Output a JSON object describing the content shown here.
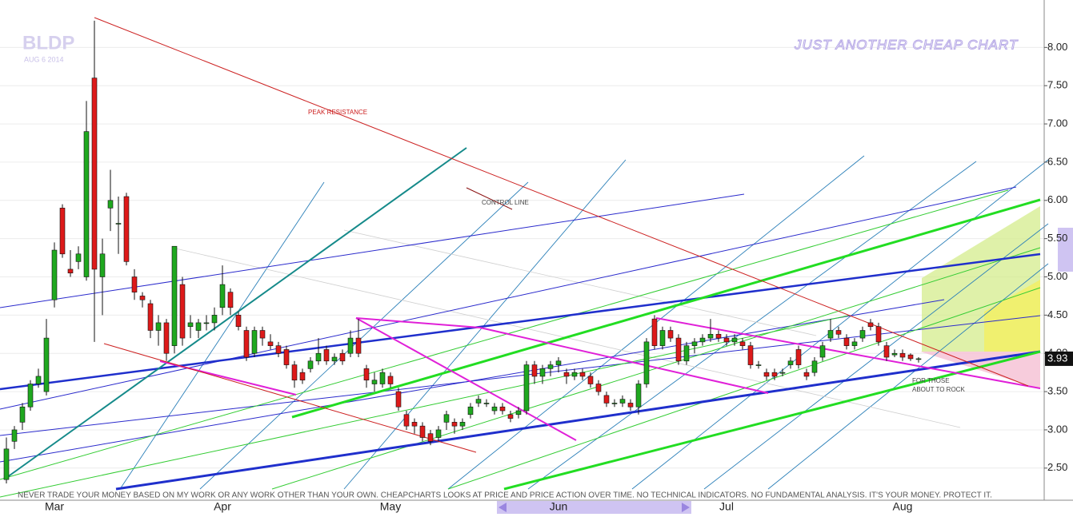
{
  "chart_data": {
    "type": "candlestick",
    "title": "JUST ANOTHER CHEAP CHART",
    "symbol": "BLDP",
    "date": "AUG 6 2014",
    "annotations": [
      "PEAK RESISTANCE",
      "CONTROL LINE",
      "FOR THOSE",
      "ABOUT TO ROCK"
    ],
    "disclaimer": "NEVER TRADE YOUR MONEY BASED ON MY WORK OR ANY WORK OTHER THAN YOUR OWN. CHEAPCHARTS LOOKS AT PRICE AND PRICE ACTION OVER TIME. NO TECHNICAL INDICATORS. NO FUNDAMENTAL ANALYSIS. IT'S YOUR MONEY. PROTECT IT.",
    "categories": [
      null,
      null,
      null,
      null,
      null,
      null,
      "Mar",
      null,
      null,
      null,
      null,
      null,
      null,
      null,
      null,
      null,
      null,
      null,
      null,
      null,
      null,
      null,
      null,
      null,
      null,
      null,
      null,
      "Apr",
      null,
      null,
      null,
      null,
      null,
      null,
      null,
      null,
      null,
      null,
      null,
      null,
      null,
      null,
      null,
      null,
      null,
      null,
      null,
      null,
      "May",
      null,
      null,
      null,
      null,
      null,
      null,
      null,
      null,
      null,
      null,
      null,
      null,
      null,
      null,
      null,
      null,
      null,
      null,
      null,
      null,
      "Jun",
      null,
      null,
      null,
      null,
      null,
      null,
      null,
      null,
      null,
      null,
      null,
      null,
      null,
      null,
      null,
      null,
      null,
      null,
      null,
      null,
      "Jul",
      null,
      null,
      null,
      null,
      null,
      null,
      null,
      null,
      null,
      null,
      null,
      null,
      null,
      null,
      null,
      null,
      null,
      null,
      null,
      null,
      null,
      "Aug",
      null,
      null
    ],
    "open": [
      2.35,
      2.85,
      3.1,
      3.3,
      3.6,
      3.5,
      4.7,
      5.9,
      5.1,
      5.2,
      5.0,
      7.6,
      5.0,
      5.9,
      5.7,
      6.05,
      5.0,
      4.75,
      4.65,
      4.3,
      4.4,
      4.1,
      4.9,
      4.35,
      4.3,
      4.4,
      4.4,
      4.6,
      4.8,
      4.5,
      4.3,
      4.0,
      4.3,
      4.15,
      4.1,
      4.05,
      3.85,
      3.75,
      3.8,
      3.9,
      4.05,
      3.9,
      4.0,
      4.0,
      4.2,
      3.8,
      3.6,
      3.6,
      3.7,
      3.5,
      3.2,
      3.1,
      3.05,
      2.95,
      2.9,
      3.1,
      3.1,
      3.05,
      3.2,
      3.35,
      3.35,
      3.25,
      3.3,
      3.2,
      3.2,
      3.25,
      3.85,
      3.7,
      3.8,
      3.85,
      3.75,
      3.7,
      3.75,
      3.7,
      3.6,
      3.45,
      3.35,
      3.35,
      3.35,
      3.3,
      3.6,
      4.45,
      4.1,
      4.3,
      4.2,
      3.9,
      4.1,
      4.15,
      4.2,
      4.25,
      4.2,
      4.15,
      4.15,
      4.1,
      3.85,
      3.75,
      3.75,
      3.75,
      3.85,
      4.05,
      3.75,
      3.75,
      3.95,
      4.2,
      4.3,
      4.2,
      4.1,
      4.2,
      4.4,
      4.35,
      4.1,
      3.98,
      4.0,
      3.98,
      3.93
    ],
    "high": [
      2.9,
      3.05,
      3.35,
      3.65,
      3.8,
      4.45,
      5.45,
      5.95,
      5.35,
      5.4,
      7.3,
      8.35,
      5.5,
      6.4,
      6.05,
      6.1,
      5.1,
      4.8,
      4.7,
      4.5,
      4.45,
      5.4,
      5.0,
      4.5,
      4.45,
      4.5,
      4.6,
      5.15,
      4.85,
      4.55,
      4.35,
      4.35,
      4.35,
      4.25,
      4.15,
      4.1,
      3.9,
      3.8,
      3.95,
      4.2,
      4.1,
      4.0,
      4.05,
      4.3,
      4.45,
      3.85,
      3.75,
      3.8,
      3.75,
      3.55,
      3.25,
      3.15,
      3.1,
      3.0,
      3.05,
      3.25,
      3.15,
      3.15,
      3.35,
      3.45,
      3.4,
      3.35,
      3.35,
      3.25,
      3.3,
      3.9,
      3.9,
      3.85,
      3.9,
      3.95,
      3.8,
      3.8,
      3.8,
      3.75,
      3.65,
      3.5,
      3.4,
      3.45,
      3.4,
      3.65,
      4.2,
      4.5,
      4.35,
      4.35,
      4.25,
      4.15,
      4.2,
      4.25,
      4.45,
      4.3,
      4.25,
      4.25,
      4.2,
      4.15,
      3.9,
      3.8,
      3.8,
      3.8,
      3.95,
      4.1,
      3.8,
      3.95,
      4.15,
      4.45,
      4.35,
      4.25,
      4.2,
      4.35,
      4.45,
      4.4,
      4.15,
      4.05,
      4.05,
      4.0,
      3.95
    ],
    "low": [
      2.3,
      2.75,
      3.0,
      3.25,
      3.55,
      3.45,
      4.6,
      5.25,
      5.0,
      5.1,
      4.95,
      4.15,
      4.5,
      5.6,
      5.3,
      5.15,
      4.7,
      4.6,
      4.2,
      4.1,
      3.9,
      4.0,
      4.1,
      4.2,
      4.2,
      4.3,
      4.3,
      4.5,
      4.5,
      4.3,
      3.9,
      3.95,
      4.1,
      4.05,
      3.95,
      3.8,
      3.55,
      3.6,
      3.75,
      3.85,
      3.85,
      3.85,
      3.85,
      3.95,
      3.95,
      3.55,
      3.5,
      3.55,
      3.55,
      3.25,
      3.0,
      2.95,
      2.85,
      2.8,
      2.85,
      3.0,
      2.95,
      3.0,
      3.15,
      3.3,
      3.3,
      3.2,
      3.2,
      3.1,
      3.15,
      3.2,
      3.6,
      3.6,
      3.7,
      3.75,
      3.6,
      3.65,
      3.65,
      3.55,
      3.45,
      3.3,
      3.3,
      3.3,
      3.25,
      3.2,
      3.55,
      4.05,
      4.05,
      4.15,
      3.85,
      3.85,
      4.0,
      4.1,
      4.15,
      4.15,
      4.1,
      4.1,
      4.05,
      3.8,
      3.8,
      3.65,
      3.65,
      3.7,
      3.8,
      3.8,
      3.65,
      3.7,
      3.9,
      4.15,
      4.2,
      4.05,
      4.05,
      4.15,
      4.3,
      4.1,
      3.9,
      3.95,
      3.9,
      3.9,
      3.88
    ],
    "close": [
      2.75,
      3.0,
      3.3,
      3.6,
      3.7,
      4.2,
      5.35,
      5.3,
      5.05,
      5.3,
      6.9,
      5.1,
      5.3,
      6.0,
      5.7,
      5.2,
      4.8,
      4.7,
      4.3,
      4.4,
      4.0,
      5.4,
      4.2,
      4.4,
      4.4,
      4.4,
      4.5,
      4.9,
      4.6,
      4.35,
      3.95,
      4.3,
      4.2,
      4.1,
      4.0,
      3.85,
      3.65,
      3.65,
      3.9,
      4.0,
      3.9,
      3.95,
      3.9,
      4.2,
      4.0,
      3.65,
      3.65,
      3.75,
      3.6,
      3.3,
      3.05,
      3.05,
      2.9,
      2.85,
      3.0,
      3.2,
      3.05,
      3.1,
      3.3,
      3.4,
      3.35,
      3.3,
      3.25,
      3.15,
      3.25,
      3.85,
      3.7,
      3.8,
      3.85,
      3.9,
      3.7,
      3.75,
      3.7,
      3.6,
      3.5,
      3.35,
      3.35,
      3.4,
      3.3,
      3.6,
      4.15,
      4.1,
      4.3,
      4.2,
      3.9,
      4.1,
      4.15,
      4.2,
      4.25,
      4.2,
      4.15,
      4.2,
      4.1,
      3.85,
      3.85,
      3.7,
      3.7,
      3.75,
      3.9,
      3.85,
      3.7,
      3.9,
      4.1,
      4.3,
      4.25,
      4.1,
      4.15,
      4.3,
      4.35,
      4.15,
      3.95,
      4.0,
      3.95,
      3.93,
      3.93
    ],
    "last_price": 3.93,
    "up_color": "#1fa81f",
    "down_color": "#dd1a1a",
    "ylim": [
      2.08,
      8.62
    ],
    "yticks": [
      {
        "value": 2.5,
        "label": "2.50"
      },
      {
        "value": 3.0,
        "label": "3.00"
      },
      {
        "value": 3.5,
        "label": "3.50"
      },
      {
        "value": 4.0,
        "label": "4.00"
      },
      {
        "value": 4.5,
        "label": "4.50"
      },
      {
        "value": 5.0,
        "label": "5.00"
      },
      {
        "value": 5.5,
        "label": "5.50"
      },
      {
        "value": 6.0,
        "label": "6.00"
      },
      {
        "value": 6.5,
        "label": "6.50"
      },
      {
        "value": 7.0,
        "label": "7.00"
      },
      {
        "value": 7.5,
        "label": "7.50"
      },
      {
        "value": 8.0,
        "label": "8.00"
      }
    ],
    "grid": true
  }
}
